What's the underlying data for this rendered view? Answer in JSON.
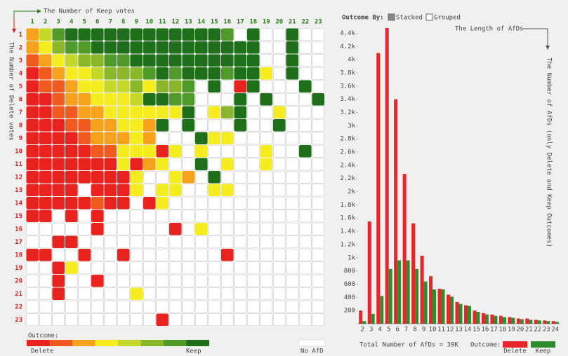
{
  "controls": {
    "label": "Outcome By:",
    "options": [
      "Stacked",
      "Grouped"
    ]
  },
  "chart_data": [
    {
      "type": "heatmap",
      "xlabel": "The Number of Keep votes",
      "ylabel": "The Number of Delete votes",
      "xcategories": [
        1,
        2,
        3,
        4,
        5,
        6,
        7,
        8,
        9,
        10,
        11,
        12,
        13,
        14,
        15,
        16,
        17,
        18,
        19,
        20,
        21,
        22,
        23
      ],
      "ycategories": [
        1,
        2,
        3,
        4,
        5,
        6,
        7,
        8,
        9,
        10,
        11,
        12,
        13,
        14,
        15,
        16,
        17,
        18,
        19,
        20,
        21,
        22,
        23
      ],
      "values": [
        [
          2,
          4,
          6,
          7,
          7,
          7,
          7,
          7,
          7,
          7,
          7,
          7,
          7,
          7,
          7,
          6,
          null,
          7,
          null,
          null,
          7,
          null,
          null
        ],
        [
          2,
          3,
          5,
          6,
          6,
          7,
          7,
          7,
          7,
          7,
          7,
          7,
          7,
          7,
          7,
          7,
          7,
          7,
          null,
          null,
          7,
          null,
          null
        ],
        [
          1,
          2,
          3,
          4,
          5,
          5,
          6,
          6,
          7,
          7,
          7,
          7,
          7,
          7,
          7,
          7,
          7,
          7,
          null,
          null,
          7,
          null,
          null
        ],
        [
          0,
          1,
          2,
          3,
          3,
          4,
          5,
          5,
          5,
          6,
          7,
          6,
          7,
          7,
          7,
          6,
          7,
          7,
          3,
          null,
          7,
          null,
          null
        ],
        [
          0,
          1,
          1,
          2,
          3,
          3,
          4,
          4,
          5,
          3,
          5,
          5,
          6,
          null,
          7,
          null,
          0,
          7,
          null,
          null,
          null,
          7,
          null
        ],
        [
          0,
          0,
          1,
          2,
          2,
          3,
          3,
          3,
          4,
          7,
          7,
          6,
          6,
          null,
          null,
          null,
          7,
          null,
          7,
          null,
          null,
          null,
          7
        ],
        [
          0,
          0,
          1,
          1,
          2,
          2,
          3,
          3,
          3,
          3,
          3,
          3,
          7,
          null,
          3,
          5,
          7,
          null,
          null,
          3,
          null,
          null,
          null
        ],
        [
          0,
          0,
          0,
          1,
          1,
          2,
          2,
          3,
          3,
          2,
          7,
          null,
          7,
          null,
          null,
          null,
          7,
          null,
          null,
          7,
          null,
          null,
          null
        ],
        [
          0,
          0,
          0,
          0,
          1,
          2,
          2,
          2,
          3,
          2,
          null,
          null,
          null,
          7,
          3,
          3,
          null,
          null,
          null,
          null,
          null,
          null,
          null
        ],
        [
          0,
          0,
          0,
          0,
          0,
          1,
          1,
          3,
          3,
          3,
          0,
          3,
          null,
          3,
          null,
          null,
          null,
          null,
          3,
          null,
          null,
          7,
          null
        ],
        [
          0,
          0,
          0,
          0,
          0,
          0,
          0,
          3,
          0,
          2,
          3,
          null,
          null,
          7,
          null,
          3,
          null,
          null,
          3,
          null,
          null,
          null,
          null
        ],
        [
          0,
          0,
          0,
          0,
          0,
          0,
          0,
          0,
          3,
          null,
          null,
          3,
          2,
          null,
          7,
          null,
          null,
          null,
          null,
          null,
          null,
          null,
          null
        ],
        [
          0,
          0,
          0,
          0,
          null,
          0,
          0,
          0,
          3,
          null,
          3,
          3,
          null,
          null,
          3,
          3,
          null,
          null,
          null,
          null,
          null,
          null,
          null
        ],
        [
          0,
          0,
          0,
          0,
          0,
          1,
          0,
          0,
          null,
          0,
          3,
          null,
          null,
          null,
          null,
          null,
          null,
          null,
          null,
          null,
          null,
          null,
          null
        ],
        [
          0,
          0,
          null,
          0,
          null,
          0,
          null,
          null,
          null,
          null,
          null,
          null,
          null,
          null,
          null,
          null,
          null,
          null,
          null,
          null,
          null,
          null,
          null
        ],
        [
          null,
          null,
          null,
          null,
          null,
          0,
          null,
          null,
          null,
          null,
          null,
          0,
          null,
          3,
          null,
          null,
          null,
          null,
          null,
          null,
          null,
          null,
          null
        ],
        [
          null,
          null,
          0,
          0,
          null,
          null,
          null,
          null,
          null,
          null,
          null,
          null,
          null,
          null,
          null,
          null,
          null,
          null,
          null,
          null,
          null,
          null,
          null
        ],
        [
          0,
          0,
          null,
          null,
          0,
          null,
          null,
          0,
          null,
          null,
          null,
          null,
          null,
          null,
          null,
          0,
          null,
          null,
          null,
          null,
          null,
          null,
          null
        ],
        [
          null,
          null,
          0,
          3,
          null,
          null,
          null,
          null,
          null,
          null,
          null,
          null,
          null,
          null,
          null,
          null,
          null,
          null,
          null,
          null,
          null,
          null,
          null
        ],
        [
          null,
          null,
          0,
          null,
          null,
          0,
          null,
          null,
          null,
          null,
          null,
          null,
          null,
          null,
          null,
          null,
          null,
          null,
          null,
          null,
          null,
          null,
          null
        ],
        [
          null,
          null,
          0,
          null,
          null,
          null,
          null,
          null,
          3,
          null,
          null,
          null,
          null,
          null,
          null,
          null,
          null,
          null,
          null,
          null,
          null,
          null,
          null
        ],
        [
          null,
          null,
          null,
          null,
          null,
          null,
          null,
          null,
          null,
          null,
          null,
          null,
          null,
          null,
          null,
          null,
          null,
          null,
          null,
          null,
          null,
          null,
          null
        ],
        [
          null,
          null,
          null,
          null,
          null,
          null,
          null,
          null,
          null,
          null,
          0,
          null,
          null,
          null,
          null,
          null,
          null,
          null,
          null,
          null,
          null,
          null,
          null
        ]
      ],
      "legend": {
        "title": "Outcome:",
        "colors": [
          "#e8231f",
          "#f05a1e",
          "#f7a21c",
          "#f5ed1f",
          "#c4d82a",
          "#8ab72a",
          "#4f9a28",
          "#1e6e1a"
        ],
        "low_label": "Delete",
        "high_label": "Keep",
        "empty_label": "No AfD",
        "empty_color": "#ffffff"
      }
    },
    {
      "type": "bar",
      "xlabel": "The Length of AfDs",
      "ylabel": "The Number of AfDs (only Delete and Keep Outcomes)",
      "annotation": "Total Number of AfDs = 39K",
      "legend_title": "Outcome:",
      "categories": [
        2,
        3,
        4,
        5,
        6,
        7,
        8,
        9,
        10,
        11,
        12,
        13,
        14,
        15,
        16,
        17,
        18,
        19,
        20,
        21,
        22,
        23,
        24
      ],
      "series": [
        {
          "name": "Delete",
          "color": "#e8262a",
          "values": [
            200,
            1550,
            4100,
            4480,
            3400,
            2270,
            1520,
            1030,
            720,
            530,
            440,
            330,
            280,
            200,
            160,
            140,
            120,
            100,
            80,
            80,
            60,
            50,
            40
          ]
        },
        {
          "name": "Keep",
          "color": "#2e8b2e",
          "values": [
            40,
            150,
            420,
            830,
            960,
            960,
            830,
            640,
            520,
            520,
            410,
            300,
            270,
            180,
            140,
            120,
            100,
            90,
            70,
            60,
            50,
            40,
            30
          ]
        }
      ],
      "ylim": [
        0,
        4500
      ],
      "yticks": [
        200,
        400,
        600,
        800,
        {
          "value": 1000,
          "label": "1k"
        },
        {
          "value": 1200,
          "label": "1.2k"
        },
        {
          "value": 1400,
          "label": "1.4k"
        },
        {
          "value": 1600,
          "label": "1.6k"
        },
        {
          "value": 1800,
          "label": "1.8k"
        },
        {
          "value": 2000,
          "label": "2k"
        },
        {
          "value": 2200,
          "label": "2.2k"
        },
        {
          "value": 2400,
          "label": "2.4k"
        },
        {
          "value": 2600,
          "label": "2.6k"
        },
        {
          "value": 2800,
          "label": "2.8k"
        },
        {
          "value": 3000,
          "label": "3k"
        },
        {
          "value": 3200,
          "label": "3.2k"
        },
        {
          "value": 3400,
          "label": "3.4k"
        },
        {
          "value": 3600,
          "label": "3.6k"
        },
        {
          "value": 3800,
          "label": "3.8k"
        },
        {
          "value": 4000,
          "label": "4k"
        },
        {
          "value": 4200,
          "label": "4.2k"
        },
        {
          "value": 4400,
          "label": "4.4k"
        }
      ]
    }
  ]
}
